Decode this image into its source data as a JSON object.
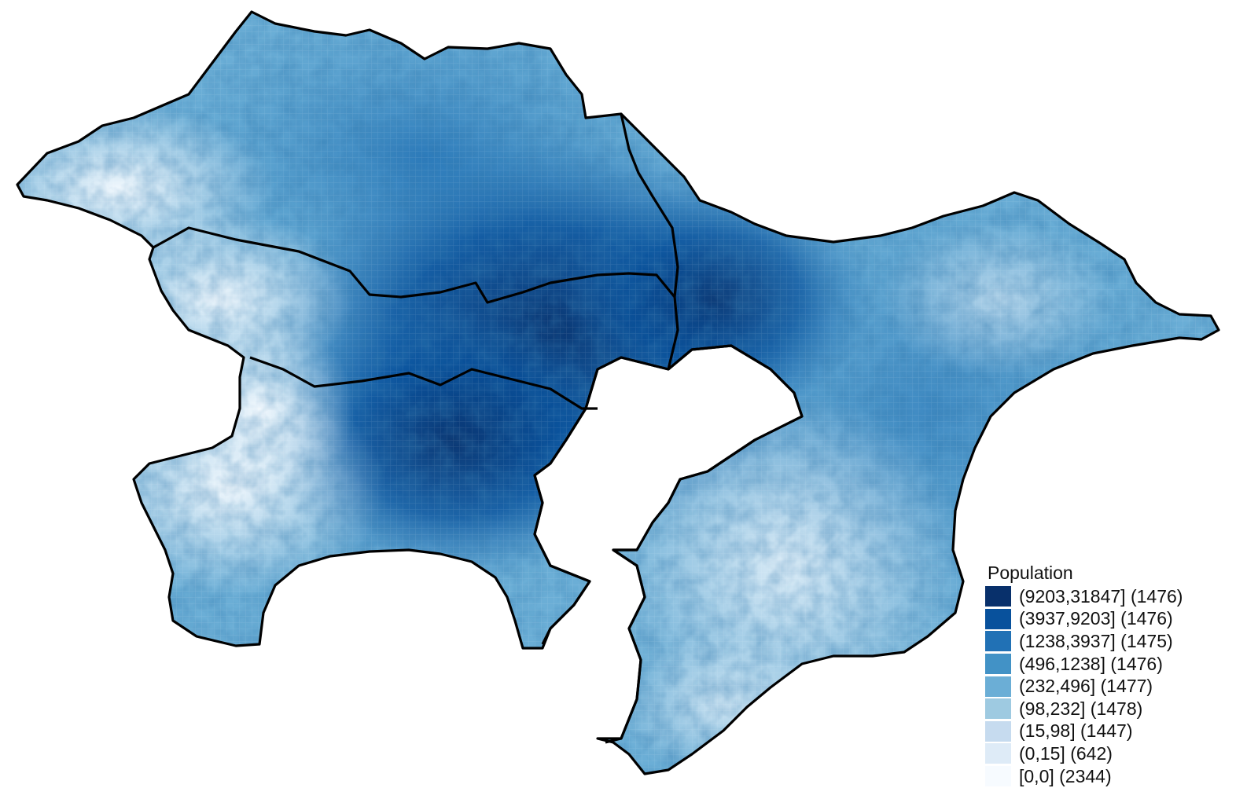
{
  "legend": {
    "title": "Population",
    "items": [
      {
        "label": "(9203,31847] (1476)",
        "color": "#08306b",
        "class_min": 9203,
        "class_max": 31847,
        "count": 1476
      },
      {
        "label": "(3937,9203] (1476)",
        "color": "#08519c",
        "class_min": 3937,
        "class_max": 9203,
        "count": 1476
      },
      {
        "label": "(1238,3937] (1475)",
        "color": "#2171b5",
        "class_min": 1238,
        "class_max": 3937,
        "count": 1475
      },
      {
        "label": "(496,1238] (1476)",
        "color": "#4292c6",
        "class_min": 496,
        "class_max": 1238,
        "count": 1476
      },
      {
        "label": "(232,496] (1477)",
        "color": "#6baed6",
        "class_min": 232,
        "class_max": 496,
        "count": 1477
      },
      {
        "label": "(98,232] (1478)",
        "color": "#9ecae1",
        "class_min": 98,
        "class_max": 232,
        "count": 1478
      },
      {
        "label": "(15,98] (1447)",
        "color": "#c6dbef",
        "class_min": 15,
        "class_max": 98,
        "count": 1447
      },
      {
        "label": "(0,15] (642)",
        "color": "#deebf7",
        "class_min": 0,
        "class_max": 15,
        "count": 642
      },
      {
        "label": "[0,0] (2344)",
        "color": "#f7fbff",
        "class_min": 0,
        "class_max": 0,
        "count": 2344
      }
    ]
  },
  "map": {
    "type": "choropleth grid",
    "variable": "Population",
    "boundary_color": "#000000",
    "water_color": "#ffffff"
  }
}
